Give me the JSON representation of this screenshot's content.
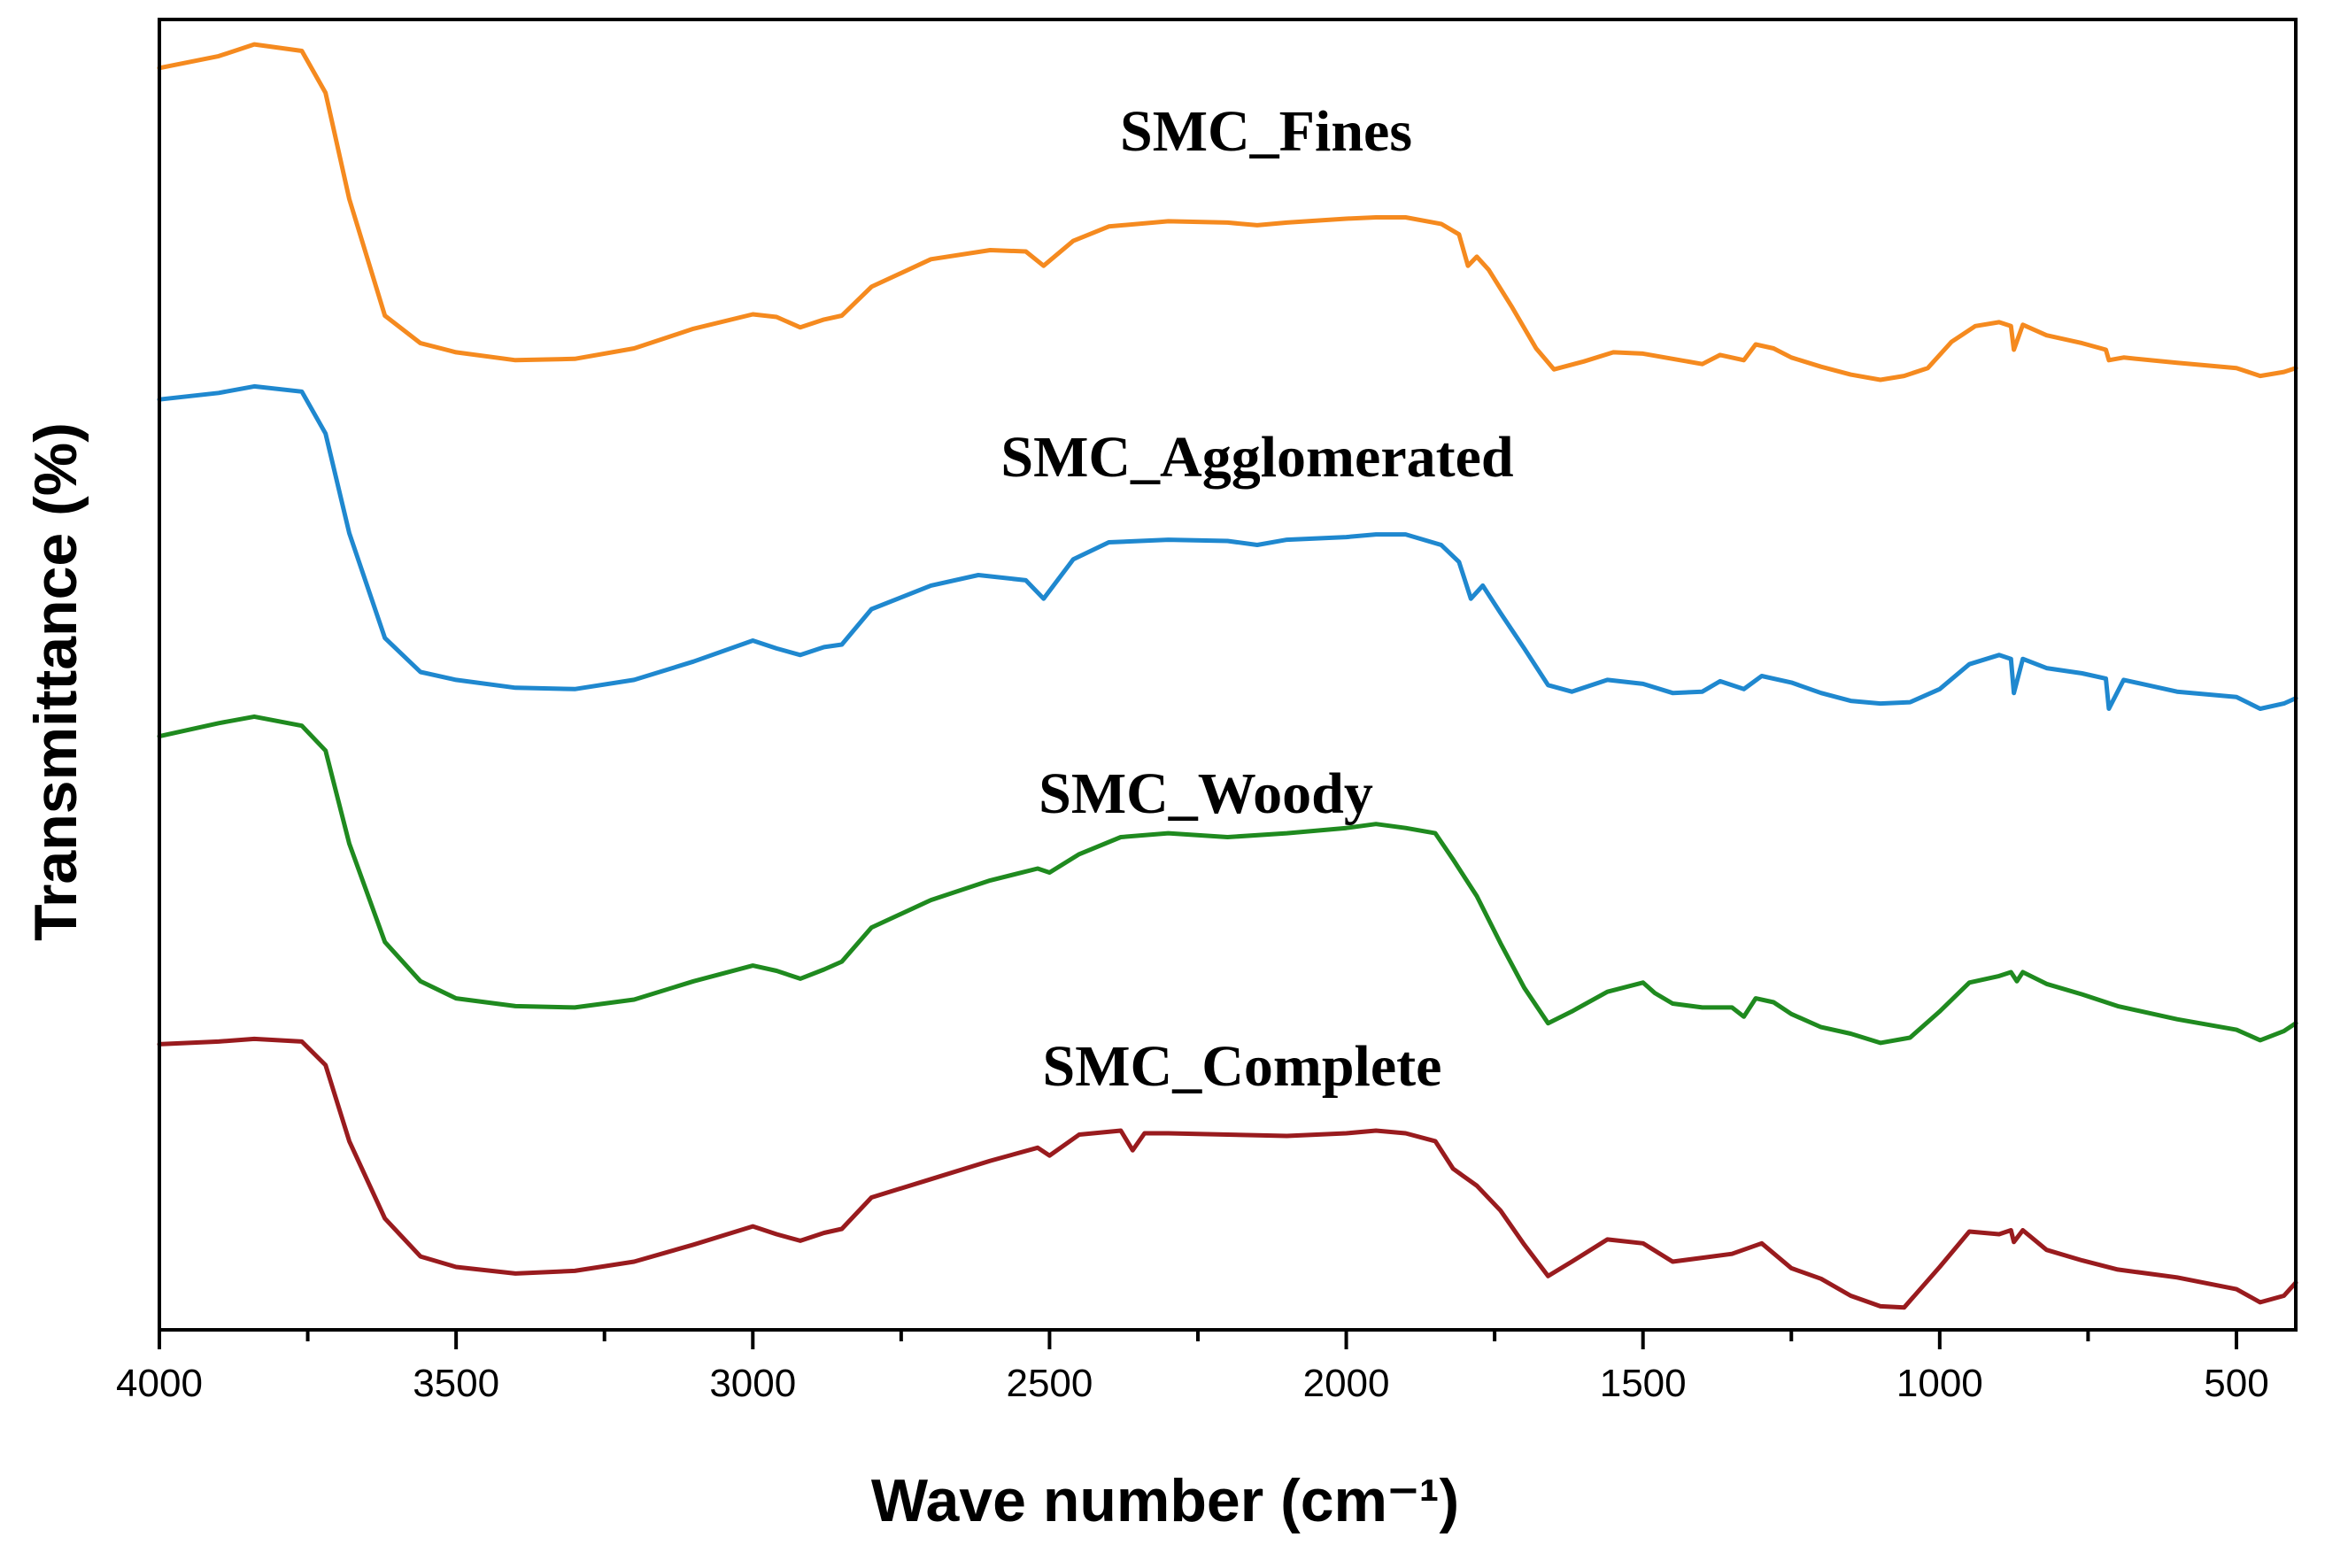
{
  "chart_data": {
    "type": "line",
    "title": "",
    "xlabel": "Wave number (cm⁻¹)",
    "ylabel": "Transmittance (%)",
    "xlim": [
      4000,
      400
    ],
    "ylim": [
      0,
      100
    ],
    "x_ticks": [
      4000,
      3500,
      3000,
      2500,
      2000,
      1500,
      1000,
      500
    ],
    "x_tick_labels": [
      "4000",
      "3500",
      "3000",
      "2500",
      "2000",
      "1500",
      "1000",
      "500"
    ],
    "y_ticks_shown": false,
    "series": [
      {
        "name": "SMC_Fines",
        "color": "#f58a1f",
        "x": [
          4000,
          3900,
          3840,
          3760,
          3720,
          3680,
          3620,
          3560,
          3500,
          3400,
          3300,
          3200,
          3100,
          3000,
          2960,
          2920,
          2880,
          2850,
          2800,
          2700,
          2600,
          2540,
          2510,
          2460,
          2400,
          2300,
          2200,
          2150,
          2100,
          2000,
          1950,
          1900,
          1840,
          1810,
          1795,
          1780,
          1760,
          1720,
          1680,
          1650,
          1600,
          1550,
          1500,
          1450,
          1400,
          1370,
          1330,
          1310,
          1280,
          1250,
          1200,
          1150,
          1100,
          1060,
          1020,
          980,
          940,
          900,
          880,
          875,
          860,
          820,
          760,
          720,
          715,
          690,
          600,
          500,
          460,
          420,
          400
        ],
        "values": [
          96.3,
          97.2,
          98.1,
          97.6,
          94.4,
          86.3,
          77.4,
          75.3,
          74.6,
          74.0,
          74.1,
          74.9,
          76.4,
          77.5,
          77.3,
          76.5,
          77.1,
          77.4,
          79.6,
          81.7,
          82.4,
          82.3,
          81.2,
          83.1,
          84.2,
          84.6,
          84.5,
          84.3,
          84.5,
          84.8,
          84.9,
          84.9,
          84.4,
          83.6,
          81.2,
          81.9,
          80.9,
          78.0,
          74.9,
          73.3,
          73.9,
          74.6,
          74.5,
          74.1,
          73.7,
          74.4,
          74.0,
          75.2,
          74.9,
          74.2,
          73.5,
          72.9,
          72.5,
          72.8,
          73.4,
          75.4,
          76.6,
          76.9,
          76.6,
          74.8,
          76.7,
          75.9,
          75.3,
          74.8,
          74.0,
          74.2,
          73.8,
          73.4,
          72.8,
          73.1,
          73.4
        ]
      },
      {
        "name": "SMC_Agglomerated",
        "color": "#1f88cf",
        "x": [
          4000,
          3900,
          3840,
          3760,
          3720,
          3680,
          3620,
          3560,
          3500,
          3400,
          3300,
          3200,
          3100,
          3000,
          2960,
          2920,
          2880,
          2850,
          2800,
          2700,
          2620,
          2540,
          2510,
          2460,
          2400,
          2300,
          2200,
          2150,
          2100,
          2000,
          1950,
          1900,
          1840,
          1810,
          1790,
          1770,
          1740,
          1700,
          1660,
          1620,
          1560,
          1500,
          1450,
          1400,
          1370,
          1330,
          1300,
          1250,
          1200,
          1150,
          1100,
          1050,
          1000,
          950,
          900,
          880,
          875,
          860,
          820,
          760,
          720,
          715,
          690,
          600,
          500,
          460,
          420,
          400
        ],
        "values": [
          71.0,
          71.5,
          72.0,
          71.6,
          68.4,
          60.8,
          52.8,
          50.2,
          49.6,
          49.0,
          48.9,
          49.6,
          51.0,
          52.6,
          52.0,
          51.5,
          52.1,
          52.3,
          55.0,
          56.8,
          57.6,
          57.2,
          55.8,
          58.8,
          60.1,
          60.3,
          60.2,
          59.9,
          60.3,
          60.5,
          60.7,
          60.7,
          59.9,
          58.6,
          55.8,
          56.8,
          54.7,
          52.0,
          49.2,
          48.7,
          49.6,
          49.3,
          48.6,
          48.7,
          49.5,
          48.9,
          49.9,
          49.4,
          48.6,
          48.0,
          47.8,
          47.9,
          48.9,
          50.8,
          51.5,
          51.2,
          48.6,
          51.2,
          50.5,
          50.1,
          49.7,
          47.4,
          49.6,
          48.7,
          48.3,
          47.4,
          47.8,
          48.2
        ]
      },
      {
        "name": "SMC_Woody",
        "color": "#1f8a1f",
        "x": [
          4000,
          3900,
          3840,
          3760,
          3720,
          3680,
          3620,
          3560,
          3500,
          3400,
          3300,
          3200,
          3100,
          3000,
          2960,
          2920,
          2880,
          2850,
          2800,
          2700,
          2600,
          2520,
          2500,
          2450,
          2380,
          2300,
          2200,
          2100,
          2000,
          1950,
          1900,
          1850,
          1820,
          1780,
          1740,
          1700,
          1660,
          1620,
          1560,
          1500,
          1480,
          1450,
          1400,
          1350,
          1330,
          1310,
          1280,
          1250,
          1200,
          1150,
          1100,
          1050,
          1000,
          950,
          900,
          880,
          870,
          860,
          820,
          760,
          700,
          600,
          500,
          460,
          420,
          400
        ],
        "values": [
          45.3,
          46.3,
          46.8,
          46.1,
          44.2,
          37.1,
          29.6,
          26.6,
          25.3,
          24.7,
          24.6,
          25.2,
          26.6,
          27.8,
          27.4,
          26.8,
          27.5,
          28.1,
          30.7,
          32.8,
          34.3,
          35.2,
          34.9,
          36.3,
          37.6,
          37.9,
          37.6,
          37.9,
          38.3,
          38.6,
          38.3,
          37.9,
          35.9,
          33.1,
          29.5,
          26.1,
          23.4,
          24.3,
          25.8,
          26.5,
          25.7,
          24.9,
          24.6,
          24.6,
          23.9,
          25.3,
          25.0,
          24.1,
          23.1,
          22.6,
          21.9,
          22.3,
          24.3,
          26.5,
          27.0,
          27.3,
          26.6,
          27.3,
          26.4,
          25.6,
          24.7,
          23.7,
          22.9,
          22.1,
          22.8,
          23.4
        ]
      },
      {
        "name": "SMC_Complete",
        "color": "#991b1e",
        "x": [
          4000,
          3900,
          3840,
          3760,
          3720,
          3680,
          3620,
          3560,
          3500,
          3400,
          3300,
          3200,
          3100,
          3000,
          2960,
          2920,
          2880,
          2850,
          2800,
          2700,
          2600,
          2520,
          2500,
          2450,
          2380,
          2360,
          2340,
          2300,
          2200,
          2100,
          2000,
          1950,
          1900,
          1850,
          1820,
          1780,
          1740,
          1700,
          1660,
          1620,
          1560,
          1500,
          1450,
          1400,
          1350,
          1300,
          1250,
          1200,
          1150,
          1100,
          1060,
          1000,
          950,
          900,
          880,
          875,
          860,
          820,
          760,
          700,
          600,
          500,
          460,
          420,
          400
        ],
        "values": [
          21.8,
          22.0,
          22.2,
          22.0,
          20.2,
          14.4,
          8.5,
          5.6,
          4.8,
          4.3,
          4.5,
          5.2,
          6.5,
          7.9,
          7.3,
          6.8,
          7.4,
          7.7,
          10.1,
          11.5,
          12.9,
          13.9,
          13.3,
          14.9,
          15.2,
          13.7,
          15.0,
          15.0,
          14.9,
          14.8,
          15.0,
          15.2,
          15.0,
          14.4,
          12.3,
          11.0,
          9.1,
          6.5,
          4.1,
          5.2,
          6.9,
          6.6,
          5.2,
          5.5,
          5.8,
          6.6,
          4.7,
          3.9,
          2.6,
          1.8,
          1.7,
          4.8,
          7.5,
          7.3,
          7.6,
          6.7,
          7.6,
          6.1,
          5.3,
          4.6,
          4.0,
          3.1,
          2.1,
          2.6,
          3.6
        ]
      }
    ]
  }
}
